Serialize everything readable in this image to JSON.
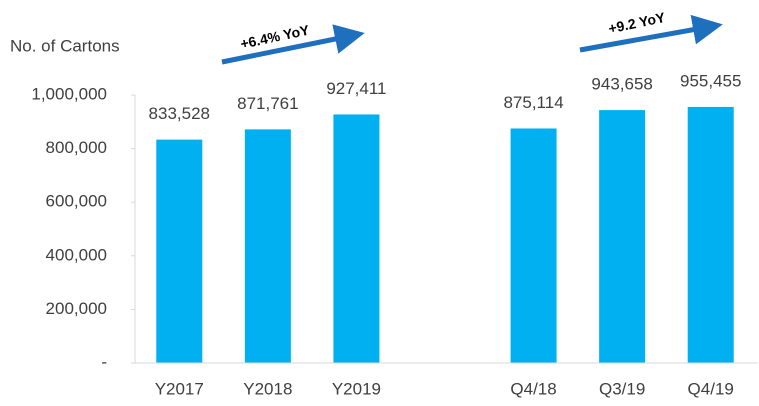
{
  "chart_data": {
    "type": "bar",
    "y_axis_label": "No. of Cartons",
    "annotations": [
      "+6.4% YoY",
      "+9.2 YoY"
    ],
    "categories": [
      "Y2017",
      "Y2018",
      "Y2019",
      null,
      "Q4/18",
      "Q3/19",
      "Q4/19"
    ],
    "values": [
      833528,
      871761,
      927411,
      null,
      875114,
      943658,
      955455
    ],
    "value_labels": [
      "833,528",
      "871,761",
      "927,411",
      null,
      "875,114",
      "943,658",
      "955,455"
    ],
    "color": "#00b0f0",
    "ylim": [
      0,
      1000000
    ],
    "yticks": [
      {
        "value": 0,
        "label": "-"
      },
      {
        "value": 200000,
        "label": "200,000"
      },
      {
        "value": 400000,
        "label": "400,000"
      },
      {
        "value": 600000,
        "label": "600,000"
      },
      {
        "value": 800000,
        "label": "800,000"
      },
      {
        "value": 1000000,
        "label": "1,000,000"
      }
    ],
    "grid": false
  }
}
